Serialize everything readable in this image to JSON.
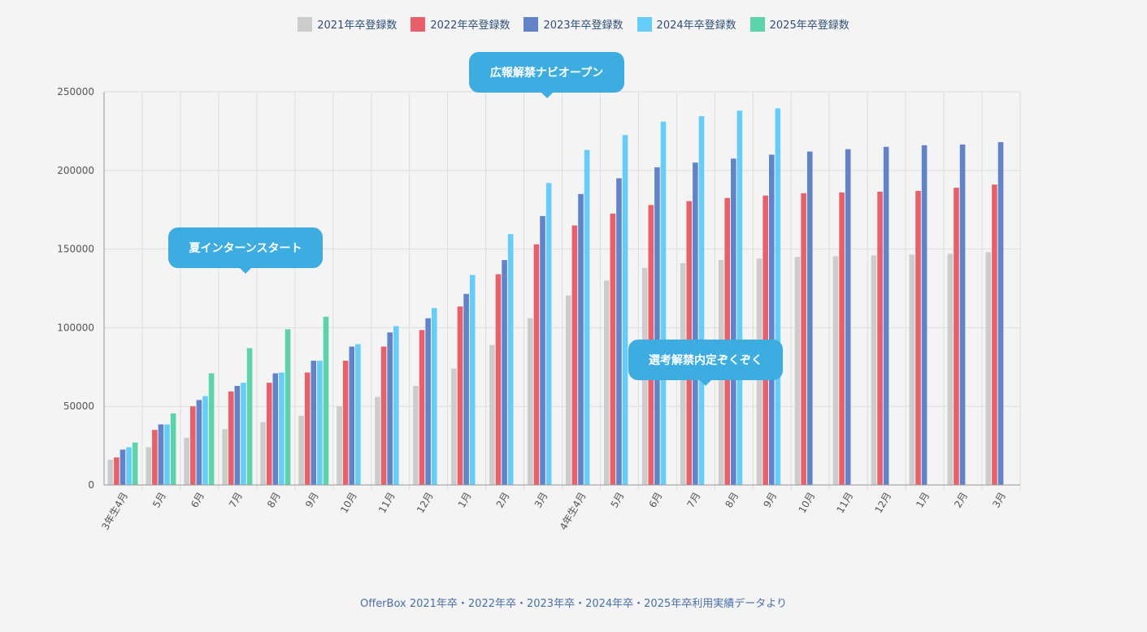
{
  "chart_data": {
    "type": "bar",
    "categories": [
      "3年生4月",
      "5月",
      "6月",
      "7月",
      "8月",
      "9月",
      "10月",
      "11月",
      "12月",
      "1月",
      "2月",
      "3月",
      "4年生4月",
      "5月",
      "6月",
      "7月",
      "8月",
      "9月",
      "10月",
      "11月",
      "12月",
      "1月",
      "2月",
      "3月"
    ],
    "series": [
      {
        "name": "2021年卒登録数",
        "color": "#cccccc",
        "values": [
          16000,
          24000,
          30000,
          35500,
          40000,
          44000,
          50000,
          56000,
          63000,
          74000,
          89000,
          106000,
          120500,
          130000,
          138000,
          141000,
          143000,
          144000,
          145000,
          145500,
          146000,
          146500,
          147000,
          148000
        ]
      },
      {
        "name": "2022年卒登録数",
        "color": "#e8606a",
        "values": [
          17500,
          35000,
          50000,
          59500,
          65000,
          71500,
          79000,
          88000,
          98500,
          113500,
          134000,
          153000,
          165000,
          172500,
          178000,
          180500,
          182500,
          184000,
          185500,
          186000,
          186500,
          187000,
          189000,
          191000
        ]
      },
      {
        "name": "2023年卒登録数",
        "color": "#6283c8",
        "values": [
          22500,
          38500,
          54000,
          63000,
          71000,
          79000,
          88000,
          97000,
          106000,
          121500,
          143000,
          171000,
          185000,
          195000,
          202000,
          205000,
          207500,
          210000,
          212000,
          213500,
          215000,
          216000,
          216500,
          218000
        ]
      },
      {
        "name": "2024年卒登録数",
        "color": "#66ccf8",
        "values": [
          24000,
          38500,
          56500,
          65000,
          71500,
          79000,
          89500,
          101000,
          112500,
          133500,
          159500,
          192000,
          213000,
          222500,
          231000,
          234500,
          238000,
          239500,
          null,
          null,
          null,
          null,
          null,
          null
        ]
      },
      {
        "name": "2025年卒登録数",
        "color": "#5cd3a8",
        "values": [
          27000,
          45500,
          71000,
          87000,
          99000,
          107000,
          null,
          null,
          null,
          null,
          null,
          null,
          null,
          null,
          null,
          null,
          null,
          null,
          null,
          null,
          null,
          null,
          null,
          null
        ]
      }
    ],
    "yticks": [
      0,
      50000,
      100000,
      150000,
      200000,
      250000
    ],
    "ylim": [
      0,
      250000
    ],
    "grid": true,
    "legend": "top-center",
    "title": "",
    "xlabel": "",
    "ylabel": ""
  },
  "annotations": [
    {
      "text": "夏インターンスタート"
    },
    {
      "text": "広報解禁ナビオープン"
    },
    {
      "text": "選考解禁内定ぞくぞく"
    }
  ],
  "source": "OfferBox 2021年卒・2022年卒・2023年卒・2024年卒・2025年卒利用実績データより"
}
